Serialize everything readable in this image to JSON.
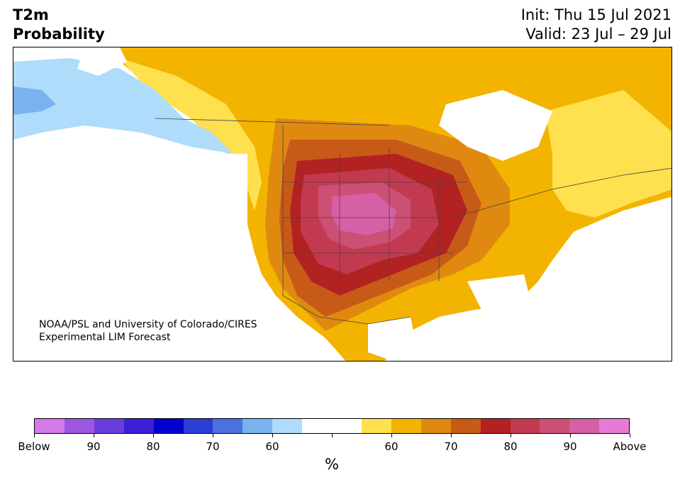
{
  "header": {
    "variable": "T2m",
    "product": "Probability",
    "init": "Init: Thu 15 Jul 2021",
    "valid": "Valid: 23 Jul – 29 Jul"
  },
  "map": {
    "region": "North America",
    "credit_line1": "NOAA/PSL and University of Colorado/CIRES",
    "credit_line2": "Experimental LIM Forecast"
  },
  "colorbar": {
    "unit": "%",
    "colors": [
      "#d47be8",
      "#9c57e0",
      "#6a3ddb",
      "#3a1fd6",
      "#0000d0",
      "#2a3ed6",
      "#4c72e0",
      "#79b3ef",
      "#aedcfa",
      "#ffffff",
      "#ffffff",
      "#ffe04e",
      "#f2b400",
      "#e08910",
      "#c85a17",
      "#b22222",
      "#c23a50",
      "#cc4f75",
      "#d660a5",
      "#e87ad6"
    ],
    "tick_labels": [
      "Below",
      "90",
      "80",
      "70",
      "60",
      "",
      "60",
      "70",
      "80",
      "90",
      "Above"
    ]
  }
}
